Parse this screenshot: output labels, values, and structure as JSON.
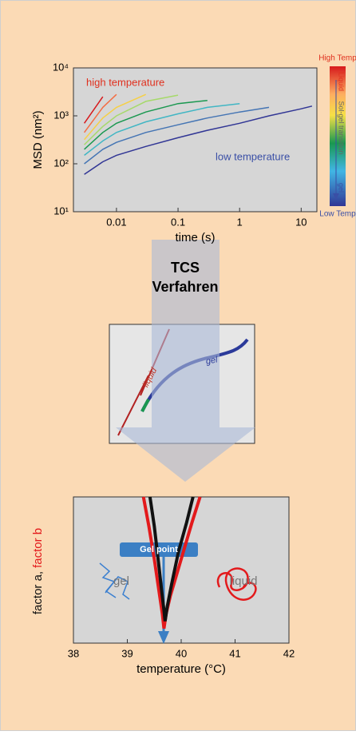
{
  "chart_data": [
    {
      "type": "line",
      "xlabel": "time (s)",
      "ylabel": "MSD (nm²)",
      "xscale": "log",
      "yscale": "log",
      "xlim": [
        0.002,
        18
      ],
      "ylim": [
        10,
        10000
      ],
      "xticks": [
        0.01,
        0.1,
        1,
        10
      ],
      "yticks": [
        {
          "value": 10,
          "label": "10¹"
        },
        {
          "value": 100,
          "label": "10²"
        },
        {
          "value": 1000,
          "label": "10³"
        },
        {
          "value": 10000,
          "label": "10⁴"
        }
      ],
      "x": [
        0.003,
        0.006,
        0.01,
        0.03,
        0.1,
        0.3,
        1,
        3,
        10,
        15
      ],
      "series": [
        {
          "color": "#d7191c",
          "values": [
            700,
            2500,
            null,
            null,
            null,
            null,
            null,
            null,
            null,
            null
          ]
        },
        {
          "color": "#f46d43",
          "values": [
            450,
            1500,
            2800,
            null,
            null,
            null,
            null,
            null,
            null,
            null
          ]
        },
        {
          "color": "#f6d046",
          "values": [
            320,
            900,
            1500,
            2800,
            null,
            null,
            null,
            null,
            null,
            null
          ]
        },
        {
          "color": "#a6d96a",
          "values": [
            250,
            600,
            1000,
            2000,
            2700,
            null,
            null,
            null,
            null,
            null
          ]
        },
        {
          "color": "#1a9850",
          "values": [
            200,
            450,
            700,
            1200,
            1800,
            2100,
            null,
            null,
            null,
            null
          ]
        },
        {
          "color": "#41b6c4",
          "values": [
            150,
            300,
            450,
            750,
            1100,
            1500,
            1800,
            null,
            null,
            null
          ]
        },
        {
          "color": "#4575b4",
          "values": [
            100,
            200,
            280,
            450,
            650,
            900,
            1200,
            1500,
            null,
            null
          ]
        },
        {
          "color": "#313695",
          "values": [
            60,
            110,
            150,
            230,
            350,
            500,
            700,
            1000,
            1400,
            1600
          ]
        }
      ],
      "annotations": [
        {
          "text": "high temperature",
          "color": "#e0301e"
        },
        {
          "text": "low temperature",
          "color": "#3a4fa6"
        }
      ],
      "colorbar": {
        "top_label": "High Temp",
        "bottom_label": "Low Temp",
        "labels": [
          "Liquid",
          "Sol-gel transition",
          "gel"
        ]
      }
    },
    {
      "type": "line",
      "xlabel": "temperature (°C)",
      "ylabel_parts": [
        {
          "text": "factor a,",
          "color": "#111111"
        },
        {
          "text": "factor b",
          "color": "#e31a1c"
        }
      ],
      "xlim": [
        38,
        42
      ],
      "ylim": [
        0,
        4
      ],
      "xticks": [
        38,
        39,
        40,
        41,
        42
      ],
      "series": [
        {
          "color": "#e31a1c",
          "x": [
            39.3,
            39.4,
            39.5,
            39.6,
            39.65,
            39.68,
            39.72,
            39.8,
            40.0,
            40.2,
            40.35
          ],
          "values": [
            4,
            3.2,
            2.3,
            1.3,
            0.8,
            0.4,
            0.8,
            1.3,
            2.3,
            3.3,
            4
          ]
        },
        {
          "color": "#111111",
          "x": [
            39.42,
            39.5,
            39.58,
            39.64,
            39.68,
            39.7,
            39.74,
            39.82,
            39.95,
            40.1,
            40.22
          ],
          "values": [
            4,
            3.2,
            2.2,
            1.4,
            0.9,
            0.6,
            1.0,
            1.6,
            2.5,
            3.3,
            4
          ]
        }
      ],
      "annotations": [
        {
          "text": "Gel point",
          "color": "#ffffff"
        },
        {
          "text": "gel",
          "color": "#777777"
        },
        {
          "text": "liquid",
          "color": "#777777"
        }
      ]
    }
  ],
  "process": {
    "title_lines": [
      "TCS",
      "Verfahren"
    ],
    "inset_labels": [
      {
        "text": "liquid",
        "color": "#c0392b"
      },
      {
        "text": "gel",
        "color": "#2b3a9a"
      }
    ]
  }
}
